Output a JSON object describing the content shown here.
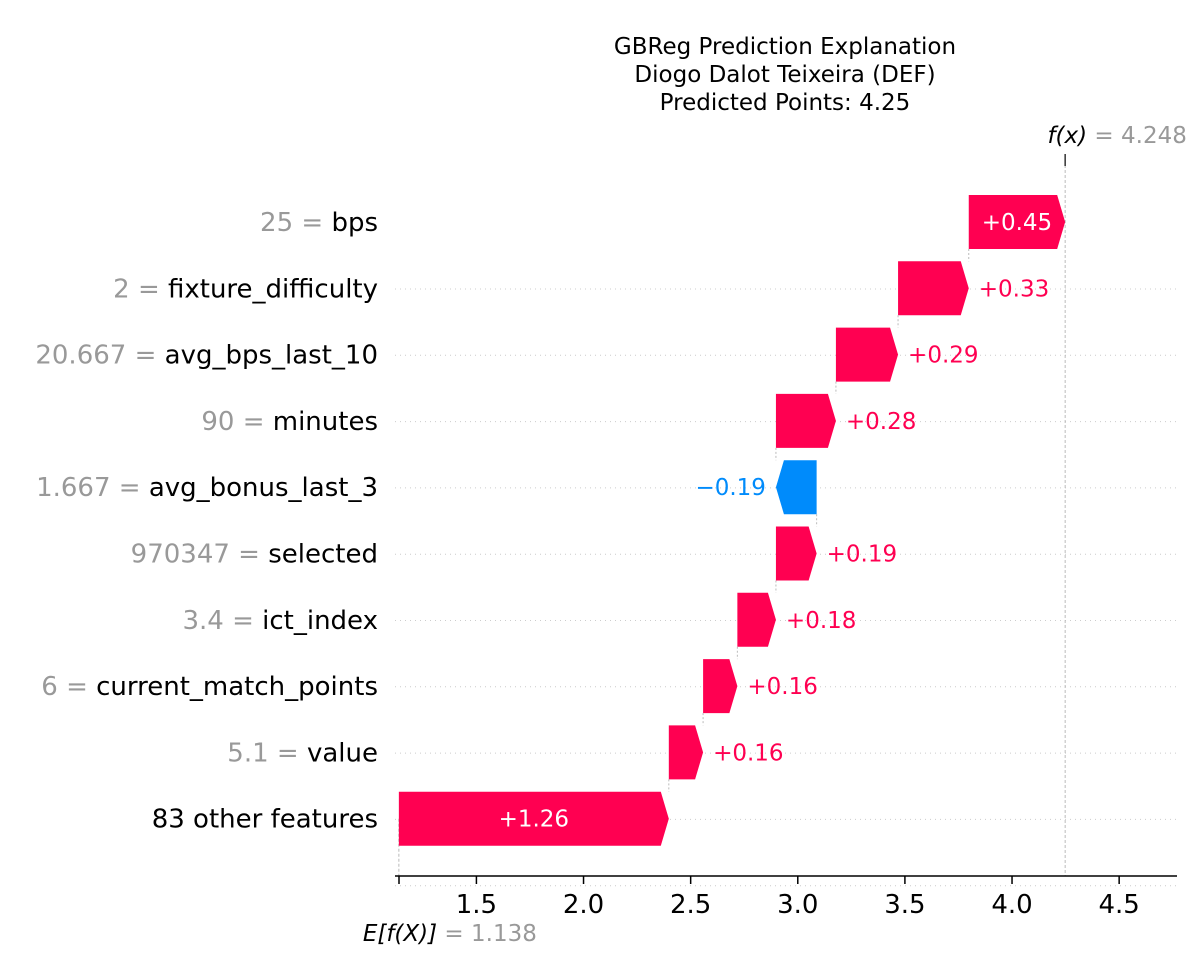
{
  "chart_data": {
    "type": "waterfall",
    "title_lines": [
      "GBReg Prediction Explanation",
      "Diogo Dalot Teixeira (DEF)",
      "Predicted Points: 4.25"
    ],
    "base_value": 1.138,
    "base_label": "E[f(X)]",
    "base_value_text": "= 1.138",
    "output_value": 4.248,
    "output_label": "f(x)",
    "output_value_text": "= 4.248",
    "xlim": [
      1.12,
      4.77
    ],
    "xticks": [
      1.5,
      2.0,
      2.5,
      3.0,
      3.5,
      4.0,
      4.5
    ],
    "xtick_labels": [
      "1.5",
      "2.0",
      "2.5",
      "3.0",
      "3.5",
      "4.0",
      "4.5"
    ],
    "features": [
      {
        "value_text": "25 =",
        "name": "bps",
        "start": 3.798,
        "end": 4.248,
        "contribution": 0.45,
        "label": "+0.45"
      },
      {
        "value_text": "2 =",
        "name": "fixture_difficulty",
        "start": 3.468,
        "end": 3.798,
        "contribution": 0.33,
        "label": "+0.33"
      },
      {
        "value_text": "20.667 =",
        "name": "avg_bps_last_10",
        "start": 3.178,
        "end": 3.468,
        "contribution": 0.29,
        "label": "+0.29"
      },
      {
        "value_text": "90 =",
        "name": "minutes",
        "start": 2.898,
        "end": 3.178,
        "contribution": 0.28,
        "label": "+0.28"
      },
      {
        "value_text": "1.667 =",
        "name": "avg_bonus_last_3",
        "start": 3.088,
        "end": 2.898,
        "contribution": -0.19,
        "label": "−0.19"
      },
      {
        "value_text": "970347 =",
        "name": "selected",
        "start": 2.898,
        "end": 3.088,
        "contribution": 0.19,
        "label": "+0.19"
      },
      {
        "value_text": "3.4 =",
        "name": "ict_index",
        "start": 2.718,
        "end": 2.898,
        "contribution": 0.18,
        "label": "+0.18"
      },
      {
        "value_text": "6 =",
        "name": "current_match_points",
        "start": 2.558,
        "end": 2.718,
        "contribution": 0.16,
        "label": "+0.16"
      },
      {
        "value_text": "5.1 =",
        "name": "value",
        "start": 2.398,
        "end": 2.558,
        "contribution": 0.16,
        "label": "+0.16"
      },
      {
        "value_text": "",
        "name": "83 other features",
        "start": 1.138,
        "end": 2.398,
        "contribution": 1.26,
        "label": "+1.26"
      }
    ],
    "colors": {
      "positive": "#ff0051",
      "negative": "#008bfb",
      "muted_text": "#999999",
      "grid": "#cccccc"
    }
  }
}
